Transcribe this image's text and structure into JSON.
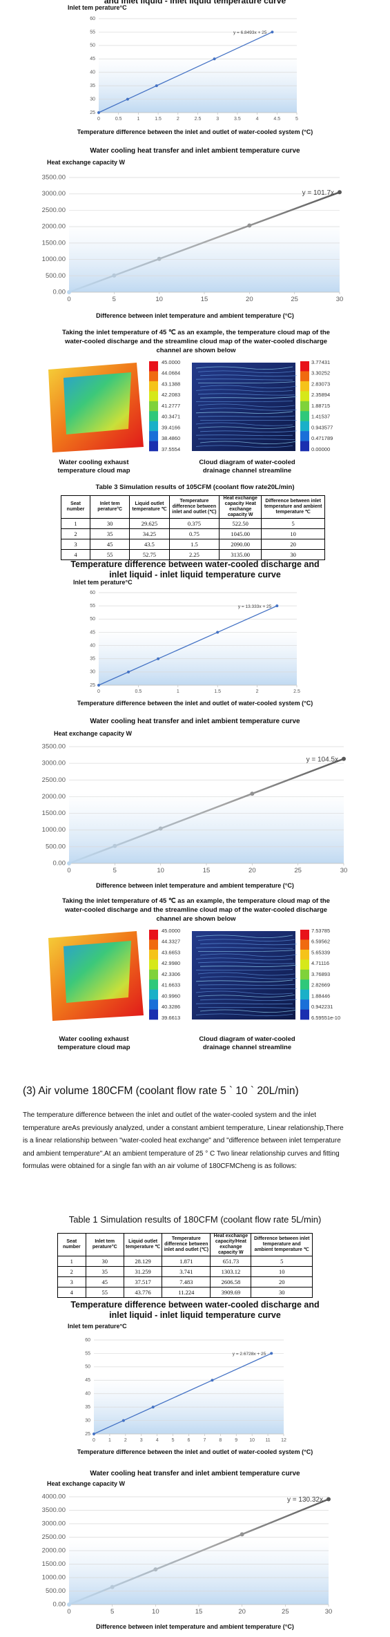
{
  "chart_data": [
    {
      "type": "line",
      "title": "and inlet liquid - inlet liquid temperature curve",
      "y_label": "Inlet tem perature°C",
      "x_label": "Temperature difference between the inlet and outlet of water-cooled system (°C)",
      "equation": "y = 6.8493x + 25",
      "x": [
        0,
        0.73,
        1.46,
        2.92,
        4.38
      ],
      "values": [
        25,
        30,
        35,
        45,
        55
      ],
      "color": "#4472c4",
      "xlim": [
        0,
        5
      ],
      "xticks": [
        0,
        0.5,
        1,
        1.5,
        2,
        2.5,
        3,
        3.5,
        4,
        4.5,
        5
      ],
      "ylim": [
        25,
        60
      ],
      "yticks": [
        25,
        30,
        35,
        40,
        45,
        50,
        55,
        60
      ],
      "grid": true
    },
    {
      "type": "line",
      "title": "Water cooling heat transfer and inlet ambient temperature curve",
      "y_label": "Heat exchange capacity W",
      "x_label": "Difference between inlet temperature and ambient temperature (°C)",
      "equation": "y = 101.7x",
      "x": [
        0,
        5,
        10,
        20,
        30
      ],
      "values": [
        0,
        508.5,
        1017,
        2034,
        3051
      ],
      "color": "#595959",
      "gradient_from": "#bdd7ee",
      "xlim": [
        0,
        30
      ],
      "xticks": [
        0,
        5,
        10,
        15,
        20,
        25,
        30
      ],
      "ylim": [
        0,
        3500
      ],
      "yticks": [
        {
          "value": 0,
          "label": "0.00"
        },
        {
          "value": 500,
          "label": "500.00"
        },
        {
          "value": 1000,
          "label": "1000.00"
        },
        {
          "value": 1500,
          "label": "1500.00"
        },
        {
          "value": 2000,
          "label": "2000.00"
        },
        {
          "value": 2500,
          "label": "2500.00"
        },
        {
          "value": 3000,
          "label": "3000.00"
        },
        {
          "value": 3500,
          "label": "3500.00"
        }
      ],
      "grid": true
    },
    {
      "type": "line",
      "title": "Temperature difference between water-cooled discharge and inlet liquid - inlet liquid temperature curve",
      "y_label": "Inlet tem perature°C",
      "x_label": "Temperature difference between the inlet and outlet of water-cooled system (°C)",
      "equation": "y = 13.333x + 25",
      "x": [
        0,
        0.375,
        0.75,
        1.5,
        2.25
      ],
      "values": [
        25,
        30,
        35,
        45,
        55
      ],
      "color": "#4472c4",
      "xlim": [
        0,
        2.5
      ],
      "xticks": [
        0,
        0.5,
        1,
        1.5,
        2,
        2.5
      ],
      "ylim": [
        25,
        60
      ],
      "yticks": [
        25,
        30,
        35,
        40,
        45,
        50,
        55,
        60
      ],
      "grid": true
    },
    {
      "type": "line",
      "title": "Water cooling heat transfer and inlet ambient temperature curve",
      "y_label": "Heat exchange capacity W",
      "x_label": "Difference between inlet temperature and ambient temperature (°C)",
      "equation": "y = 104.5x",
      "x": [
        0,
        5,
        10,
        20,
        30
      ],
      "values": [
        0,
        522.5,
        1045,
        2090,
        3135
      ],
      "color": "#595959",
      "gradient_from": "#bdd7ee",
      "xlim": [
        0,
        30
      ],
      "xticks": [
        0,
        5,
        10,
        15,
        20,
        25,
        30
      ],
      "ylim": [
        0,
        3500
      ],
      "yticks": [
        {
          "value": 0,
          "label": "0.00"
        },
        {
          "value": 500,
          "label": "500.00"
        },
        {
          "value": 1000,
          "label": "1000.00"
        },
        {
          "value": 1500,
          "label": "1500.00"
        },
        {
          "value": 2000,
          "label": "2000.00"
        },
        {
          "value": 2500,
          "label": "2500.00"
        },
        {
          "value": 3000,
          "label": "3000.00"
        },
        {
          "value": 3500,
          "label": "3500.00"
        }
      ],
      "grid": true
    },
    {
      "type": "line",
      "title": "Temperature difference between water-cooled discharge and inlet liquid - inlet liquid temperature curve",
      "y_label": "Inlet tem perature°C",
      "x_label": "Temperature difference between the inlet and outlet of water-cooled system (°C)",
      "equation": "y = 2.6728x + 25",
      "x": [
        0,
        1.871,
        3.741,
        7.483,
        11.224
      ],
      "values": [
        25,
        30,
        35,
        45,
        55
      ],
      "color": "#4472c4",
      "xlim": [
        0,
        12
      ],
      "xticks": [
        0,
        1,
        2,
        3,
        4,
        5,
        6,
        7,
        8,
        9,
        10,
        11,
        12
      ],
      "ylim": [
        25,
        60
      ],
      "yticks": [
        25,
        30,
        35,
        40,
        45,
        50,
        55,
        60
      ],
      "grid": true
    },
    {
      "type": "line",
      "title": "Water cooling heat transfer and inlet ambient temperature curve",
      "y_label": "Heat exchange capacity W",
      "x_label": "Difference between inlet temperature and ambient temperature (°C)",
      "equation": "y = 130.32x",
      "x": [
        0,
        5,
        10,
        20,
        30
      ],
      "values": [
        0,
        651.73,
        1303.12,
        2606.58,
        3909.69
      ],
      "color": "#595959",
      "gradient_from": "#bdd7ee",
      "xlim": [
        0,
        30
      ],
      "xticks": [
        0,
        5,
        10,
        15,
        20,
        25,
        30
      ],
      "ylim": [
        0,
        4000
      ],
      "yticks": [
        {
          "value": 0,
          "label": "0.00"
        },
        {
          "value": 500,
          "label": "500.00"
        },
        {
          "value": 1000,
          "label": "1000.00"
        },
        {
          "value": 1500,
          "label": "1500.00"
        },
        {
          "value": 2000,
          "label": "2000.00"
        },
        {
          "value": 2500,
          "label": "2500.00"
        },
        {
          "value": 3000,
          "label": "3000.00"
        },
        {
          "value": 3500,
          "label": "3500.00"
        },
        {
          "value": 4000,
          "label": "4000.00"
        }
      ],
      "grid": true
    }
  ],
  "figure_sets": [
    {
      "intro": "Taking the inlet temperature of 45 ℃ as an example, the temperature cloud map of the water-cooled discharge and the streamline cloud map of the water-cooled discharge channel are shown below",
      "left_legend": [
        "45.0000",
        "44.0684",
        "43.1388",
        "42.2083",
        "41.2777",
        "40.3471",
        "39.4166",
        "38.4860",
        "37.5554"
      ],
      "right_legend": [
        "3.77431",
        "3.30252",
        "2.83073",
        "2.35894",
        "1.88715",
        "1.41537",
        "0.943577",
        "0.471789",
        "0.00000"
      ],
      "left_caption": "Water cooling exhaust temperature cloud map",
      "right_caption": "Cloud diagram of water-cooled drainage channel streamline"
    },
    {
      "intro": "Taking the inlet temperature of 45 ℃ as an example, the temperature cloud map of the water-cooled discharge and the streamline cloud map of the water-cooled discharge channel are shown below",
      "left_legend": [
        "45.0000",
        "44.3327",
        "43.6653",
        "42.9980",
        "42.3306",
        "41.6633",
        "40.9960",
        "40.3286",
        "39.6613"
      ],
      "right_legend": [
        "7.53785",
        "6.59562",
        "5.65339",
        "4.71116",
        "3.76893",
        "2.82669",
        "1.88446",
        "0.942231",
        "6.59551e-10"
      ],
      "left_caption": "Water cooling exhaust temperature cloud map",
      "right_caption": "Cloud diagram of water-cooled drainage channel streamline"
    }
  ],
  "table_3": {
    "title": "Table 3 Simulation results of 105CFM (coolant flow rate20L/min)",
    "header": [
      "Seat number",
      "Inlet tem perature°C",
      "Liquid outlet temperature ℃",
      "Temperature difference between inlet and outlet (℃)",
      "Heat exchange capacity Heat exchange capacity W",
      "Difference between inlet temperature and ambient temperature ℃"
    ],
    "rows": [
      [
        "1",
        "30",
        "29.625",
        "0.375",
        "522.50",
        "5"
      ],
      [
        "2",
        "35",
        "34.25",
        "0.75",
        "1045.00",
        "10"
      ],
      [
        "3",
        "45",
        "43.5",
        "1.5",
        "2090.00",
        "20"
      ],
      [
        "4",
        "55",
        "52.75",
        "2.25",
        "3135.00",
        "30"
      ]
    ]
  },
  "section_3": {
    "heading": "(3) Air volume 180CFM (coolant flow rate 5 ` 10 ` 20L/min)",
    "paragraph": "The temperature difference between the inlet and outlet of the water-cooled system and the inlet temperature areAs previously analyzed, under a constant ambient temperature, Linear relationship,There is a linear relationship between \"water-cooled heat exchange\" and \"difference between inlet temperature and ambient temperature\".At an ambient temperature of 25 ° C Two linear relationship curves and fitting formulas were obtained for a single fan with an air volume of 180CFMCheng is as follows:"
  },
  "table_1": {
    "title": "Table 1 Simulation results of 180CFM (coolant flow rate 5L/min)",
    "header": [
      "Seat number",
      "Inlet tem perature°C",
      "Liquid outlet temperature ℃",
      "Temperature difference between inlet and outlet (℃)",
      "Heat exchange capacity/Heat exchange capacity W",
      "Difference between inlet temperature and ambient temperature ℃"
    ],
    "rows": [
      [
        "1",
        "30",
        "28.129",
        "1.871",
        "651.73",
        "5"
      ],
      [
        "2",
        "35",
        "31.259",
        "3.741",
        "1303.12",
        "10"
      ],
      [
        "3",
        "45",
        "37.517",
        "7.483",
        "2606.58",
        "20"
      ],
      [
        "4",
        "55",
        "43.776",
        "11.224",
        "3909.69",
        "30"
      ]
    ]
  }
}
